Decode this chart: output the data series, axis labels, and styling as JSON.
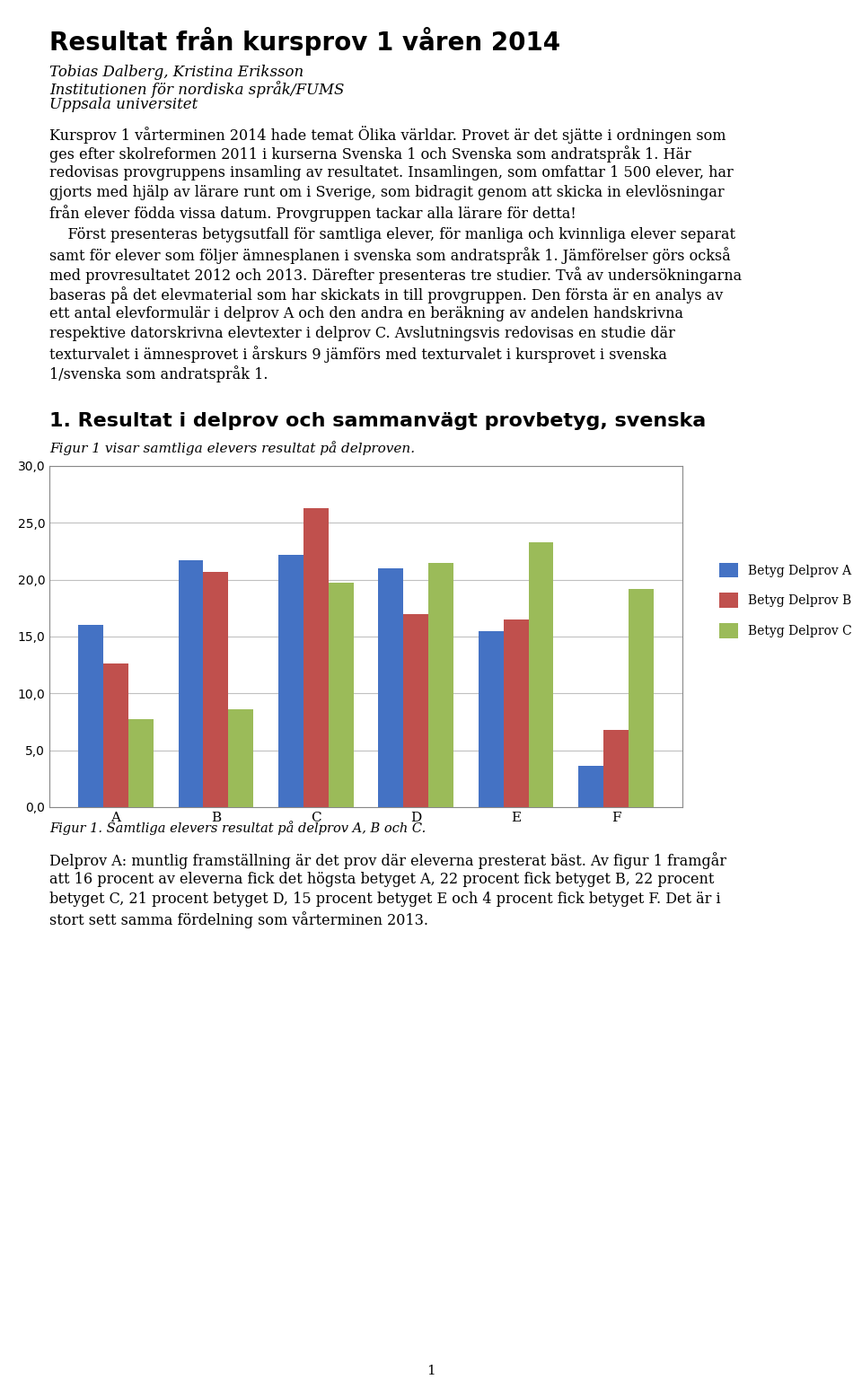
{
  "title": "Resultat från kursprov 1 våren 2014",
  "authors": "Tobias Dalberg, Kristina Eriksson",
  "institution1": "Institutionen för nordiska språk/FUMS",
  "institution2": "Uppsala universitet",
  "para1_lines": [
    "Kursprov 1 vårterminen 2014 hade temat Ölika världar. Provet är det sjätte i ordningen som",
    "ges efter skolreformen 2011 i kurserna Svenska 1 och Svenska som andratspråk 1. Här",
    "redovisas provgruppens insamling av resultatet. Insamlingen, som omfattar 1 500 elever, har",
    "gjorts med hjälp av lärare runt om i Sverige, som bidragit genom att skicka in elevlösningar",
    "från elever födda vissa datum. Provgruppen tackar alla lärare för detta!"
  ],
  "para2_lines": [
    "    Först presenteras betygsutfall för samtliga elever, för manliga och kvinnliga elever separat",
    "samt för elever som följer ämnesplanen i svenska som andratspråk 1. Jämförelser görs också",
    "med provresultatet 2012 och 2013. Därefter presenteras tre studier. Två av undersökningarna",
    "baseras på det elevmaterial som har skickats in till provgruppen. Den första är en analys av",
    "ett antal elevformulär i delprov A och den andra en beräkning av andelen handskrivna",
    "respektive datorskrivna elevtexter i delprov C. Avslutningsvis redovisas en studie där",
    "texturvalet i ämnesprovet i årskurs 9 jämförs med texturvalet i kursprovet i svenska",
    "1/svenska som andratspråk 1."
  ],
  "section_heading": "1. Resultat i delprov och sammanvägt provbetyg, svenska",
  "fig_intro": "Figur 1 visar samtliga elevers resultat på delproven.",
  "categories": [
    "A",
    "B",
    "C",
    "D",
    "E",
    "F"
  ],
  "series_A": [
    16.0,
    21.7,
    22.2,
    21.0,
    15.5,
    3.6
  ],
  "series_B": [
    12.6,
    20.7,
    26.3,
    17.0,
    16.5,
    6.8
  ],
  "series_C": [
    7.7,
    8.6,
    19.7,
    21.5,
    23.3,
    19.2
  ],
  "color_A": "#4472C4",
  "color_B": "#C0504D",
  "color_C": "#9BBB59",
  "legend_A": "Betyg Delprov A",
  "legend_B": "Betyg Delprov B",
  "legend_C": "Betyg Delprov C",
  "ylim": [
    0,
    30
  ],
  "yticks": [
    0.0,
    5.0,
    10.0,
    15.0,
    20.0,
    25.0,
    30.0
  ],
  "fig_caption": "Figur 1. Samtliga elevers resultat på delprov A, B och C.",
  "footer_lines": [
    "Delprov A: muntlig framställning är det prov där eleverna presterat bäst. Av figur 1 framgår",
    "att 16 procent av eleverna fick det högsta betyget A, 22 procent fick betyget B, 22 procent",
    "betyget C, 21 procent betyget D, 15 procent betyget E och 4 procent fick betyget F. Det är i",
    "stort sett samma fördelning som vårterminen 2013."
  ],
  "page_number": "1",
  "background_color": "#FFFFFF",
  "grid_color": "#C0C0C0"
}
